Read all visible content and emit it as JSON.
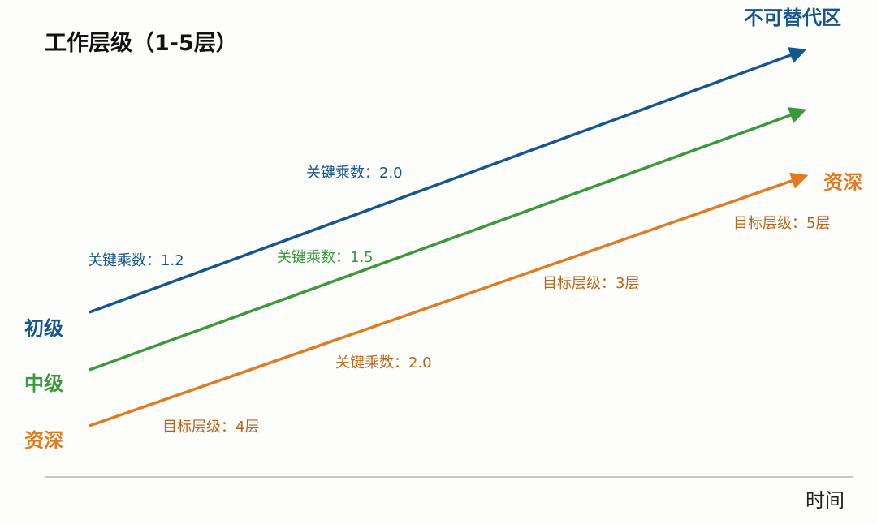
{
  "title": "工作层级（1-5层）",
  "axis": {
    "x_label": "时间"
  },
  "colors": {
    "blue": "#15568f",
    "green": "#3a9a3a",
    "orange": "#e07b22",
    "orange_text": "#b9651c",
    "title_text": "#111111",
    "axis_line": "#b5b5b5"
  },
  "tracks": [
    {
      "id": "blue",
      "start_label": "初级",
      "end_label": "不可替代区",
      "annotations": [
        "关键乘数：1.2",
        "关键乘数：2.0"
      ]
    },
    {
      "id": "green",
      "start_label": "中级",
      "end_label": "",
      "annotations": [
        "关键乘数：1.5"
      ]
    },
    {
      "id": "orange",
      "start_label": "资深",
      "end_label": "资深",
      "annotations": [
        "目标层级：4层",
        "关键乘数：2.0",
        "目标层级：3层",
        "目标层级：5层"
      ]
    }
  ]
}
